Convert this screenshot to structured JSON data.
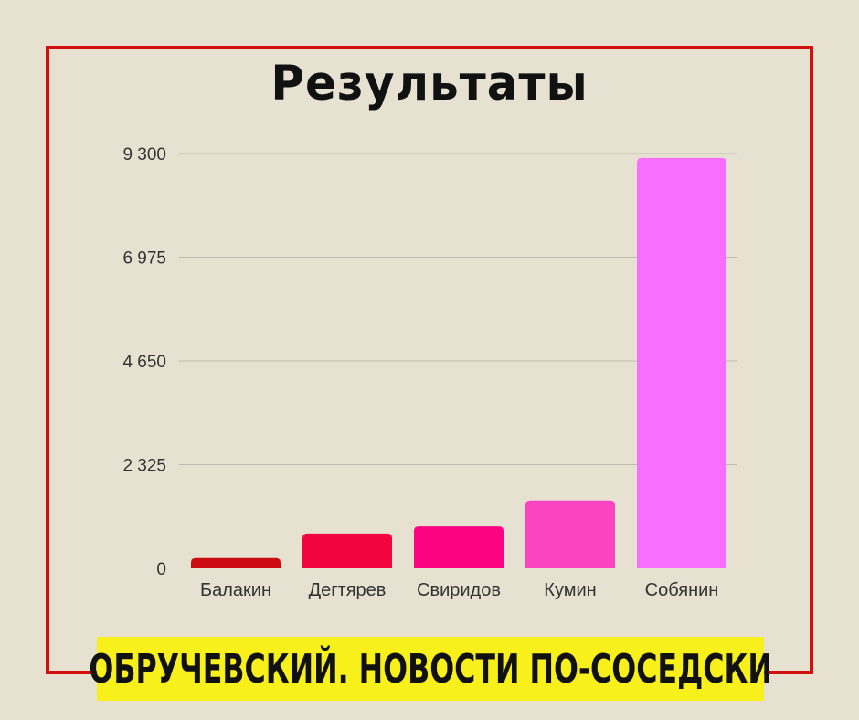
{
  "chart_data": {
    "type": "bar",
    "title": "Результаты",
    "categories": [
      "Балакин",
      "Дегтярев",
      "Свиридов",
      "Кумин",
      "Собянин"
    ],
    "values": [
      230,
      780,
      940,
      1520,
      9200
    ],
    "colors": [
      "#cc0a12",
      "#f0063d",
      "#fc0382",
      "#fc44c0",
      "#f96ffd"
    ],
    "ylim": [
      0,
      9300
    ],
    "yticks": [
      "0",
      "2 325",
      "4 650",
      "6 975",
      "9 300"
    ],
    "ytick_values": [
      0,
      2325,
      4650,
      6975,
      9300
    ],
    "grid": true,
    "xlabel": "",
    "ylabel": ""
  },
  "footer": {
    "banner_text": "ОБРУЧЕВСКИЙ. НОВОСТИ ПО-СОСЕДСКИ"
  },
  "colors": {
    "background": "#e6e1d1",
    "frame": "#d10f0f",
    "banner": "#f7f01a",
    "grid": "#bdbab0"
  }
}
